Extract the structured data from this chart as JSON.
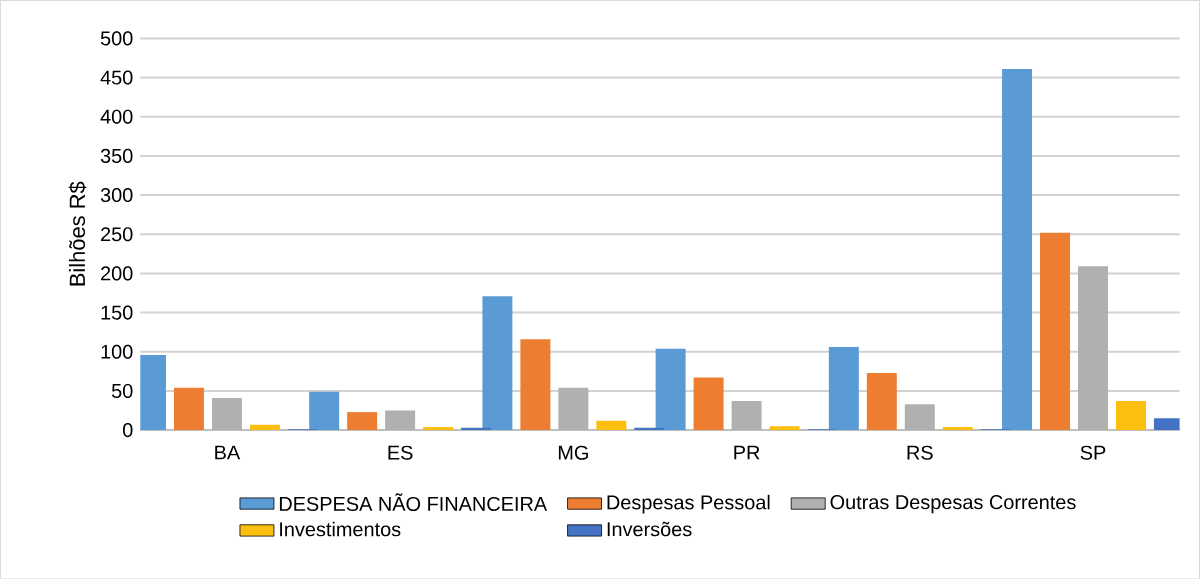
{
  "chart_data": {
    "type": "bar",
    "ylabel": "Bilhões R$",
    "categories": [
      "BA",
      "ES",
      "MG",
      "PR",
      "RS",
      "SP"
    ],
    "series": [
      {
        "name": "DESPESA NÃO FINANCEIRA",
        "color": "#5b9bd5",
        "values": [
          96,
          49,
          171,
          104,
          106,
          461
        ]
      },
      {
        "name": "Despesas Pessoal",
        "color": "#ed7d31",
        "values": [
          54,
          23,
          116,
          67,
          73,
          252
        ]
      },
      {
        "name": "Outras Despesas Correntes",
        "color": "#b0b0b0",
        "values": [
          41,
          25,
          54,
          37,
          33,
          209
        ]
      },
      {
        "name": "Investimentos",
        "color": "#fcbf10",
        "values": [
          7,
          4,
          12,
          5,
          4,
          37
        ]
      },
      {
        "name": "Inversões",
        "color": "#4472c4",
        "values": [
          1,
          3,
          3,
          1,
          1,
          15
        ]
      }
    ],
    "ylim": [
      0,
      500
    ],
    "yticks": [
      0,
      50,
      100,
      150,
      200,
      250,
      300,
      350,
      400,
      450,
      500
    ],
    "grid": "y",
    "legend": "bottom"
  }
}
